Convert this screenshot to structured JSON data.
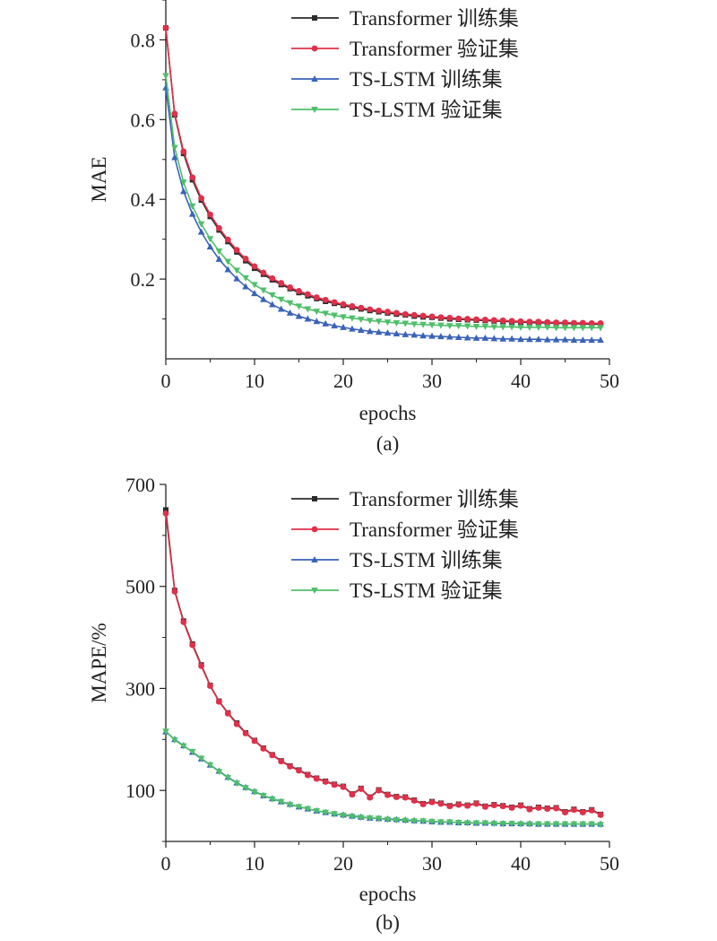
{
  "colors": {
    "transformer_train": "#2b2b2b",
    "transformer_val": "#e0304a",
    "lstm_train": "#3a63b8",
    "lstm_val": "#4fbf6a",
    "axis": "#222222"
  },
  "chart_data": [
    {
      "type": "line",
      "caption": "(a)",
      "xlabel": "epochs",
      "ylabel": "MAE",
      "xlim": [
        0,
        50
      ],
      "ylim": [
        0,
        0.9
      ],
      "xticks": [
        "0",
        "10",
        "20",
        "30",
        "40",
        "50"
      ],
      "yticks": [
        "0.2",
        "0.4",
        "0.6",
        "0.8"
      ],
      "legend_position": "top-right",
      "series": [
        {
          "name": "Transformer 训练集",
          "color": "#2b2b2b",
          "marker": "square",
          "values": [
            0.83,
            0.612,
            0.515,
            0.449,
            0.398,
            0.357,
            0.323,
            0.294,
            0.268,
            0.246,
            0.227,
            0.212,
            0.198,
            0.186,
            0.176,
            0.166,
            0.158,
            0.151,
            0.144,
            0.139,
            0.134,
            0.129,
            0.125,
            0.121,
            0.118,
            0.115,
            0.112,
            0.11,
            0.107,
            0.105,
            0.104,
            0.102,
            0.1,
            0.099,
            0.098,
            0.097,
            0.096,
            0.095,
            0.094,
            0.093,
            0.092,
            0.091,
            0.09,
            0.09,
            0.089,
            0.089,
            0.088,
            0.088,
            0.087,
            0.087
          ]
        },
        {
          "name": "Transformer 验证集",
          "color": "#e0304a",
          "marker": "circle",
          "values": [
            0.83,
            0.615,
            0.52,
            0.455,
            0.403,
            0.362,
            0.328,
            0.299,
            0.273,
            0.251,
            0.232,
            0.216,
            0.202,
            0.19,
            0.179,
            0.17,
            0.162,
            0.154,
            0.148,
            0.142,
            0.137,
            0.132,
            0.128,
            0.124,
            0.121,
            0.118,
            0.115,
            0.112,
            0.11,
            0.108,
            0.106,
            0.104,
            0.103,
            0.101,
            0.1,
            0.099,
            0.098,
            0.097,
            0.096,
            0.095,
            0.094,
            0.093,
            0.093,
            0.092,
            0.091,
            0.091,
            0.09,
            0.09,
            0.089,
            0.089
          ]
        },
        {
          "name": "TS-LSTM 训练集",
          "color": "#3a63b8",
          "marker": "triangle-up",
          "values": [
            0.68,
            0.505,
            0.42,
            0.363,
            0.318,
            0.281,
            0.25,
            0.224,
            0.201,
            0.181,
            0.164,
            0.149,
            0.136,
            0.125,
            0.115,
            0.107,
            0.1,
            0.094,
            0.088,
            0.083,
            0.079,
            0.075,
            0.072,
            0.069,
            0.067,
            0.065,
            0.063,
            0.061,
            0.06,
            0.058,
            0.057,
            0.056,
            0.055,
            0.054,
            0.053,
            0.052,
            0.052,
            0.051,
            0.05,
            0.05,
            0.049,
            0.049,
            0.049,
            0.048,
            0.048,
            0.048,
            0.047,
            0.047,
            0.047,
            0.047
          ]
        },
        {
          "name": "TS-LSTM 验证集",
          "color": "#4fbf6a",
          "marker": "triangle-down",
          "values": [
            0.71,
            0.53,
            0.443,
            0.383,
            0.338,
            0.301,
            0.27,
            0.244,
            0.222,
            0.203,
            0.186,
            0.172,
            0.16,
            0.149,
            0.14,
            0.132,
            0.125,
            0.119,
            0.114,
            0.109,
            0.105,
            0.102,
            0.099,
            0.096,
            0.094,
            0.092,
            0.09,
            0.089,
            0.087,
            0.086,
            0.085,
            0.084,
            0.083,
            0.083,
            0.082,
            0.081,
            0.081,
            0.08,
            0.08,
            0.08,
            0.079,
            0.079,
            0.079,
            0.079,
            0.078,
            0.078,
            0.078,
            0.078,
            0.078,
            0.078
          ]
        }
      ]
    },
    {
      "type": "line",
      "caption": "(b)",
      "xlabel": "epochs",
      "ylabel": "MAPE/%",
      "xlim": [
        0,
        50
      ],
      "ylim": [
        0,
        700
      ],
      "xticks": [
        "0",
        "10",
        "20",
        "30",
        "40",
        "50"
      ],
      "yticks": [
        "100",
        "300",
        "500",
        "700"
      ],
      "legend_position": "top-right",
      "series": [
        {
          "name": "Transformer 训练集",
          "color": "#2b2b2b",
          "marker": "square",
          "values": [
            650,
            492,
            432,
            387,
            346,
            306,
            275,
            252,
            232,
            213,
            198,
            183,
            170,
            158,
            148,
            140,
            131,
            124,
            118,
            112,
            108,
            93,
            104,
            87,
            101,
            92,
            88,
            87,
            81,
            74,
            78,
            75,
            70,
            73,
            71,
            75,
            69,
            72,
            70,
            67,
            71,
            64,
            67,
            65,
            66,
            58,
            63,
            58,
            62,
            53
          ]
        },
        {
          "name": "Transformer 验证集",
          "color": "#e0304a",
          "marker": "circle",
          "values": [
            643,
            490,
            430,
            385,
            344,
            305,
            274,
            251,
            230,
            212,
            197,
            182,
            169,
            157,
            147,
            139,
            130,
            123,
            117,
            111,
            107,
            92,
            103,
            86,
            100,
            91,
            87,
            86,
            80,
            73,
            77,
            74,
            69,
            72,
            70,
            74,
            68,
            71,
            69,
            66,
            70,
            63,
            66,
            64,
            65,
            57,
            62,
            57,
            61,
            52
          ]
        },
        {
          "name": "TS-LSTM 训练集",
          "color": "#3a63b8",
          "marker": "triangle-up",
          "values": [
            215,
            200,
            188,
            175,
            162,
            150,
            138,
            126,
            115,
            106,
            98,
            90,
            84,
            78,
            73,
            68,
            64,
            60,
            57,
            54,
            52,
            50,
            48,
            46,
            45,
            44,
            43,
            42,
            41,
            40,
            39,
            38,
            38,
            37,
            37,
            36,
            36,
            36,
            35,
            35,
            35,
            35,
            34,
            34,
            34,
            34,
            34,
            34,
            34,
            34
          ]
        },
        {
          "name": "TS-LSTM 验证集",
          "color": "#4fbf6a",
          "marker": "triangle-down",
          "values": [
            216,
            199,
            187,
            176,
            163,
            150,
            137,
            125,
            114,
            105,
            97,
            90,
            83,
            78,
            72,
            68,
            64,
            60,
            57,
            54,
            51,
            49,
            47,
            46,
            45,
            43,
            42,
            41,
            40,
            40,
            39,
            38,
            38,
            37,
            36,
            36,
            36,
            35,
            35,
            35,
            34,
            34,
            34,
            34,
            34,
            34,
            34,
            34,
            34,
            33
          ]
        }
      ]
    }
  ]
}
